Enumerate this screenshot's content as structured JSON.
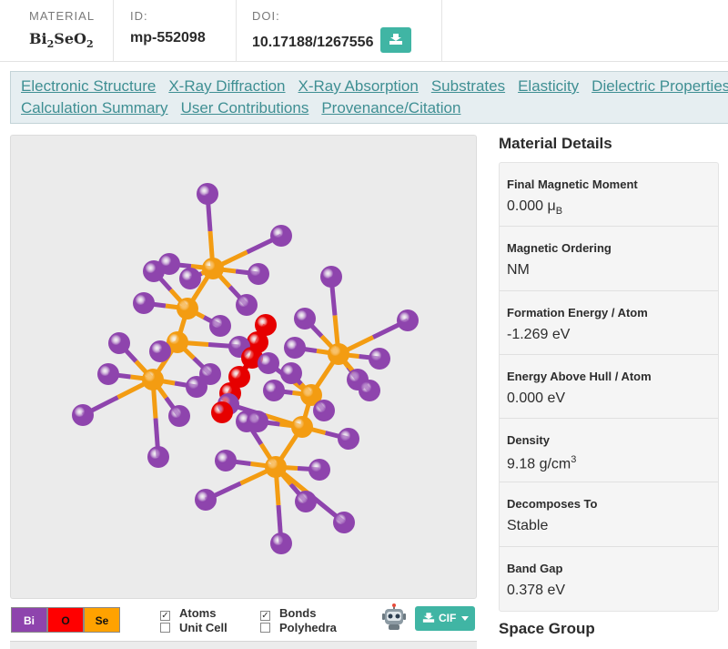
{
  "header": {
    "material_label": "MATERIAL",
    "formula": {
      "bi": "Bi",
      "bi_sub": "2",
      "se": "SeO",
      "o_sub": "2"
    },
    "id_label": "ID:",
    "id_value": "mp-552098",
    "doi_label": "DOI:",
    "doi_value": "10.17188/1267556"
  },
  "tabs": {
    "row1": [
      "Electronic Structure",
      "X-Ray Diffraction",
      "X-Ray Absorption",
      "Substrates",
      "Elasticity",
      "Dielectric Properties"
    ],
    "row2": [
      "Calculation Summary",
      "User Contributions",
      "Provenance/Citation"
    ]
  },
  "viewer": {
    "elements": [
      {
        "symbol": "Bi",
        "color": "#8e44ad"
      },
      {
        "symbol": "O",
        "color": "#ff0000"
      },
      {
        "symbol": "Se",
        "color": "#ffa200"
      }
    ],
    "toggles": {
      "atoms": {
        "label": "Atoms",
        "checked": true
      },
      "unit_cell": {
        "label": "Unit Cell",
        "checked": false
      },
      "bonds": {
        "label": "Bonds",
        "checked": true
      },
      "polyhedra": {
        "label": "Polyhedra",
        "checked": false
      }
    },
    "download_label": "CIF",
    "colors": {
      "bi_atom": "#8e44ad",
      "se_atom": "#f39c12",
      "o_atom": "#e60000",
      "accent": "#40b5a4"
    }
  },
  "details": {
    "title": "Material Details",
    "magnetic_moment": {
      "label": "Final Magnetic Moment",
      "value": "0.000 μ",
      "unit_sub": "B"
    },
    "magnetic_ordering": {
      "label": "Magnetic Ordering",
      "value": "NM"
    },
    "formation_energy": {
      "label": "Formation Energy / Atom",
      "value": "-1.269 eV"
    },
    "energy_above_hull": {
      "label": "Energy Above Hull / Atom",
      "value": "0.000 eV"
    },
    "density": {
      "label": "Density",
      "value": "9.18 g/cm",
      "unit_sup": "3"
    },
    "decomposes_to": {
      "label": "Decomposes To",
      "value": "Stable"
    },
    "band_gap": {
      "label": "Band Gap",
      "value": "0.378 eV"
    }
  },
  "space_group_title": "Space Group"
}
